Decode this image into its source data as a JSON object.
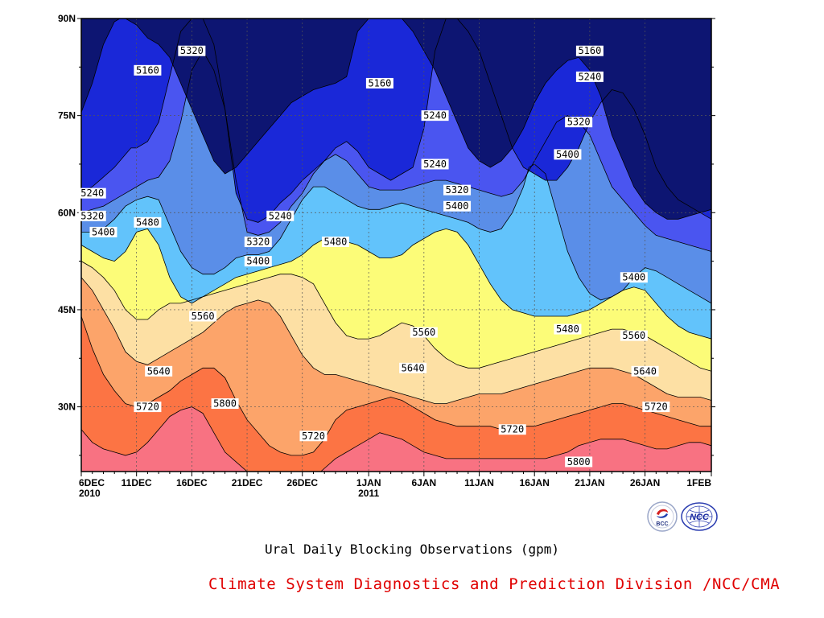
{
  "chart_data": {
    "type": "contour",
    "x_tick_labels": [
      "6DEC",
      "11DEC",
      "16DEC",
      "21DEC",
      "26DEC",
      "1JAN",
      "6JAN",
      "11JAN",
      "16JAN",
      "21JAN",
      "26JAN",
      "1FEB"
    ],
    "x_year_labels": [
      {
        "tick": "6DEC",
        "year": "2010"
      },
      {
        "tick": "1JAN",
        "year": "2011"
      }
    ],
    "y_tick_labels": [
      "30N",
      "45N",
      "60N",
      "75N",
      "90N"
    ],
    "xlim": [
      "6DEC2010",
      "1FEB2011"
    ],
    "ylim": [
      20,
      90
    ],
    "grid": true,
    "contour_levels": [
      5160,
      5240,
      5320,
      5400,
      5480,
      5560,
      5640,
      5720,
      5800
    ],
    "level_colors": [
      "#0d1572",
      "#1a28d8",
      "#4a55f0",
      "#5a8ee8",
      "#62c3fb",
      "#fcfc78",
      "#fde0a4",
      "#fca46a",
      "#fc7444",
      "#f87282"
    ],
    "boundaries": [
      {
        "level": 5160,
        "x": [
          0,
          1,
          2,
          3,
          3.5,
          4,
          5,
          6,
          7,
          8,
          9,
          10,
          11,
          12,
          13,
          14,
          15,
          16,
          17,
          18,
          19,
          20,
          21,
          22,
          23,
          24,
          25,
          26,
          27,
          28,
          29,
          30,
          31,
          32,
          33,
          34,
          35,
          36,
          37,
          38,
          39,
          40,
          41,
          42,
          43,
          44,
          45,
          46,
          47,
          48,
          49,
          50,
          51,
          52,
          53,
          54,
          55,
          56,
          57,
          58,
          59
        ],
        "y": [
          75.5,
          80,
          86,
          89.5,
          90,
          90,
          89,
          87,
          86,
          84,
          80,
          76,
          72,
          68,
          66,
          67,
          69,
          71,
          73,
          75,
          77,
          78,
          79,
          79.5,
          80,
          81,
          88,
          90,
          90,
          90,
          90,
          88,
          85,
          82,
          78,
          74,
          70,
          68,
          67,
          68,
          70,
          73,
          77,
          80,
          82,
          83.5,
          84,
          82,
          78,
          72,
          68,
          64,
          61.5,
          60,
          59,
          59,
          59.5,
          60,
          60.5,
          61,
          61
        ]
      },
      {
        "level": 5240,
        "x": [
          0,
          1,
          2,
          3,
          4,
          4.5,
          5,
          6,
          7,
          8,
          9,
          10,
          11,
          12,
          13,
          14,
          15,
          16,
          17,
          18,
          19,
          20,
          21,
          22,
          23,
          24,
          25,
          26,
          27,
          28,
          29,
          30,
          31,
          32,
          33,
          34,
          35,
          36,
          37,
          38,
          39,
          40,
          41,
          42,
          43,
          44,
          45,
          46,
          47,
          48,
          49,
          50,
          51,
          52,
          53,
          54,
          55,
          56,
          57,
          58,
          59
        ],
        "y": [
          63,
          64,
          65.5,
          67,
          69,
          70,
          70,
          71,
          74,
          81,
          88,
          90,
          90,
          86,
          76,
          63,
          59,
          58.5,
          59.5,
          61.5,
          63,
          65,
          66.5,
          68,
          70,
          71,
          69.5,
          67,
          66,
          65,
          66,
          67,
          73,
          85,
          90,
          90,
          88,
          85,
          80,
          75,
          70,
          67,
          66,
          65,
          65,
          67,
          70,
          74,
          77,
          79,
          78.5,
          76,
          72,
          67,
          64,
          62,
          61,
          60,
          59,
          58,
          57
        ]
      },
      {
        "level": 5320,
        "x": [
          0,
          1,
          2,
          3,
          4,
          5,
          6,
          7,
          8,
          9,
          10,
          11,
          12,
          13,
          14,
          15,
          16,
          17,
          18,
          19,
          20,
          21,
          22,
          23,
          24,
          25,
          26,
          27,
          28,
          29,
          30,
          31,
          32,
          33,
          34,
          35,
          36,
          37,
          38,
          39,
          40,
          41,
          42,
          43,
          44,
          45,
          46,
          47,
          48,
          49,
          50,
          51,
          52,
          53,
          54,
          55,
          56,
          57,
          58,
          59
        ],
        "y": [
          60,
          60.5,
          61,
          62,
          63,
          64,
          65,
          65.5,
          68,
          74,
          82,
          85,
          82,
          76,
          65,
          57,
          56.5,
          57,
          58.5,
          61,
          63,
          66,
          68,
          69,
          68,
          66,
          64,
          63.5,
          63.5,
          63.5,
          64,
          64.5,
          65,
          65,
          64.5,
          64,
          63.5,
          63,
          62.5,
          63,
          65,
          68,
          71,
          74,
          75,
          74,
          72,
          68,
          64,
          62,
          60,
          58,
          56.5,
          56,
          55.5,
          55,
          54.5,
          54,
          53,
          51
        ]
      },
      {
        "level": 5400,
        "x": [
          0,
          1,
          2,
          3,
          4,
          5,
          6,
          7,
          8,
          9,
          10,
          11,
          12,
          13,
          14,
          15,
          16,
          17,
          18,
          19,
          20,
          21,
          22,
          23,
          24,
          25,
          26,
          27,
          28,
          29,
          30,
          31,
          32,
          33,
          34,
          35,
          35.5,
          36,
          37,
          38,
          39,
          40,
          40.5,
          41,
          42,
          43,
          44,
          45,
          46,
          47,
          48,
          49,
          50,
          51,
          52,
          53,
          54,
          55,
          56,
          57,
          58,
          59
        ],
        "y": [
          57,
          57,
          57.5,
          59,
          61,
          62,
          62.5,
          62,
          58,
          54,
          51.5,
          50.5,
          50.5,
          51.5,
          53,
          53.5,
          53.5,
          54,
          56,
          59,
          62,
          64,
          64,
          63,
          62,
          61,
          60.5,
          60.5,
          61,
          61.5,
          61,
          60.5,
          60,
          59.5,
          59,
          58.5,
          58,
          57.5,
          57,
          57.5,
          60,
          64,
          67,
          67.5,
          66,
          60,
          54,
          50,
          47.5,
          46.5,
          47,
          48,
          50,
          51.5,
          51,
          50,
          49,
          48,
          47,
          46,
          45.5,
          45
        ]
      },
      {
        "level": 5480,
        "x": [
          0,
          1,
          2,
          3,
          4,
          5,
          6,
          7,
          8,
          9,
          10,
          11,
          12,
          13,
          14,
          15,
          16,
          17,
          18,
          19,
          20,
          21,
          22,
          23,
          24,
          25,
          26,
          27,
          28,
          29,
          30,
          31,
          32,
          33,
          34,
          35,
          36,
          37,
          38,
          39,
          40,
          41,
          42,
          43,
          44,
          45,
          46,
          47,
          48,
          49,
          50,
          51,
          52,
          53,
          54,
          55,
          56,
          57,
          58,
          59
        ],
        "y": [
          55,
          54,
          53,
          52.5,
          54,
          57,
          57.5,
          55,
          50,
          47,
          46,
          47,
          48,
          49,
          50,
          50.5,
          51,
          51.5,
          52,
          52.5,
          53.5,
          55,
          56,
          56,
          55.5,
          55,
          54,
          53,
          53,
          53.5,
          55,
          56,
          57,
          57.5,
          57,
          55,
          52,
          49,
          46.5,
          45,
          44.5,
          44,
          44,
          44,
          44,
          44.5,
          45,
          46,
          47,
          48,
          48.5,
          48,
          46,
          44,
          42.5,
          41.5,
          41,
          40.5,
          40,
          39
        ]
      },
      {
        "level": 5560,
        "x": [
          0,
          1,
          2,
          3,
          4,
          5,
          6,
          7,
          8,
          9,
          10,
          11,
          12,
          13,
          14,
          15,
          16,
          17,
          18,
          19,
          20,
          21,
          22,
          23,
          24,
          25,
          26,
          27,
          28,
          29,
          30,
          31,
          32,
          33,
          34,
          35,
          36,
          37,
          38,
          39,
          40,
          41,
          42,
          43,
          44,
          45,
          46,
          47,
          48,
          49,
          50,
          51,
          52,
          53,
          54,
          55,
          56,
          57,
          58,
          59
        ],
        "y": [
          52.5,
          51.5,
          50,
          48,
          45,
          43.5,
          43.5,
          45,
          46,
          46,
          46.5,
          47,
          47.5,
          48,
          48.5,
          49,
          49.5,
          50,
          50.5,
          50.5,
          50,
          49,
          46,
          43,
          41,
          40.5,
          40.5,
          41,
          42,
          43,
          42.5,
          41,
          39,
          37.5,
          36.5,
          36,
          36,
          36.5,
          37,
          37.5,
          38,
          38.5,
          39,
          39.5,
          40,
          40.5,
          41,
          41.5,
          42,
          42,
          41.5,
          41,
          40,
          39,
          38,
          37,
          36,
          35.5,
          35,
          34.5
        ]
      },
      {
        "level": 5640,
        "x": [
          0,
          1,
          2,
          3,
          4,
          5,
          6,
          7,
          8,
          9,
          10,
          11,
          12,
          13,
          14,
          15,
          16,
          17,
          18,
          19,
          20,
          21,
          22,
          23,
          24,
          25,
          26,
          27,
          28,
          29,
          30,
          31,
          32,
          33,
          34,
          35,
          36,
          37,
          38,
          39,
          40,
          41,
          42,
          43,
          44,
          45,
          46,
          47,
          48,
          49,
          50,
          51,
          52,
          53,
          54,
          55,
          56,
          57,
          58,
          59
        ],
        "y": [
          50,
          48,
          45,
          42,
          38.5,
          37,
          36.5,
          37.5,
          38.5,
          39.5,
          40.5,
          41.5,
          43,
          44.5,
          45.5,
          46,
          46.5,
          46,
          44,
          41,
          38,
          36,
          35,
          35,
          34.5,
          34,
          33.5,
          33,
          32.5,
          32,
          31.5,
          31,
          30.5,
          30.5,
          31,
          31.5,
          32,
          32,
          32,
          32.5,
          33,
          33.5,
          34,
          34.5,
          35,
          35.5,
          36,
          36,
          36,
          35.5,
          35,
          34,
          33,
          32,
          31.5,
          31.5,
          31.5,
          31,
          31,
          31
        ]
      },
      {
        "level": 5720,
        "x": [
          0,
          1,
          2,
          3,
          4,
          5,
          6,
          7,
          8,
          9,
          10,
          11,
          12,
          13,
          14,
          15,
          16,
          17,
          18,
          19,
          20,
          21,
          22,
          23,
          24,
          25,
          26,
          27,
          28,
          29,
          30,
          31,
          32,
          33,
          34,
          35,
          36,
          37,
          38,
          39,
          40,
          41,
          42,
          43,
          44,
          45,
          46,
          47,
          48,
          49,
          50,
          51,
          52,
          53,
          54,
          55,
          56,
          57,
          58,
          59
        ],
        "y": [
          44,
          39,
          35,
          32.5,
          30.5,
          30,
          30.5,
          31.5,
          32.5,
          34,
          35,
          36,
          36,
          34.5,
          31,
          28,
          26,
          24,
          23,
          22.5,
          22.5,
          23,
          25,
          28,
          29.5,
          30,
          30.5,
          31,
          31.5,
          31,
          30,
          29,
          28,
          27.5,
          27,
          27,
          27,
          27,
          26.5,
          26.5,
          27,
          27,
          27.5,
          28,
          28.5,
          29,
          29.5,
          30,
          30.5,
          30.5,
          30,
          29.5,
          29,
          28.5,
          28,
          27.5,
          27,
          27,
          28,
          28
        ]
      },
      {
        "level": 5800,
        "x": [
          0,
          1,
          2,
          3,
          4,
          5,
          6,
          7,
          8,
          9,
          10,
          11,
          12,
          13,
          14,
          15,
          16,
          17,
          18,
          19,
          20,
          21,
          22,
          23,
          24,
          25,
          26,
          27,
          28,
          29,
          30,
          31,
          32,
          33,
          34,
          35,
          36,
          37,
          38,
          39,
          40,
          41,
          42,
          43,
          44,
          45,
          46,
          47,
          48,
          49,
          50,
          51,
          52,
          53,
          54,
          55,
          56,
          57,
          58,
          59
        ],
        "y": [
          26.5,
          24.5,
          23.5,
          23,
          22.5,
          23,
          24.5,
          26.5,
          28.5,
          29.5,
          30,
          29,
          26,
          23,
          21.5,
          20,
          19,
          19,
          18.5,
          18,
          18,
          19,
          20.5,
          22,
          23,
          24,
          25,
          26,
          25.5,
          25,
          24,
          23,
          22.5,
          22,
          22,
          22,
          22,
          22,
          22,
          22,
          22,
          22,
          22,
          22.5,
          23,
          24,
          24.5,
          25,
          25,
          25,
          24.5,
          24,
          23.5,
          23.5,
          24,
          24.5,
          24.5,
          24,
          24,
          24
        ]
      }
    ],
    "contour_labels": [
      {
        "text": "5160",
        "x": 6,
        "y": 82
      },
      {
        "text": "5160",
        "x": 27,
        "y": 80
      },
      {
        "text": "5160",
        "x": 46,
        "y": 85
      },
      {
        "text": "5240",
        "x": 1,
        "y": 63
      },
      {
        "text": "5240",
        "x": 18,
        "y": 59.5
      },
      {
        "text": "5240",
        "x": 32,
        "y": 75
      },
      {
        "text": "5240",
        "x": 32,
        "y": 67.5
      },
      {
        "text": "5240",
        "x": 46,
        "y": 81
      },
      {
        "text": "5320",
        "x": 1,
        "y": 59.5
      },
      {
        "text": "5320",
        "x": 10,
        "y": 85
      },
      {
        "text": "5320",
        "x": 16,
        "y": 55.5
      },
      {
        "text": "5320",
        "x": 34,
        "y": 63.5
      },
      {
        "text": "5320",
        "x": 45,
        "y": 74
      },
      {
        "text": "5400",
        "x": 2,
        "y": 57
      },
      {
        "text": "5400",
        "x": 16,
        "y": 52.5
      },
      {
        "text": "5400",
        "x": 34,
        "y": 61
      },
      {
        "text": "5400",
        "x": 44,
        "y": 69
      },
      {
        "text": "5400",
        "x": 50,
        "y": 50
      },
      {
        "text": "5480",
        "x": 6,
        "y": 58.5
      },
      {
        "text": "5480",
        "x": 23,
        "y": 55.5
      },
      {
        "text": "5480",
        "x": 44,
        "y": 42
      },
      {
        "text": "5560",
        "x": 11,
        "y": 44
      },
      {
        "text": "5560",
        "x": 31,
        "y": 41.5
      },
      {
        "text": "5560",
        "x": 50,
        "y": 41
      },
      {
        "text": "5640",
        "x": 7,
        "y": 35.5
      },
      {
        "text": "5640",
        "x": 30,
        "y": 36
      },
      {
        "text": "5640",
        "x": 51,
        "y": 35.5
      },
      {
        "text": "5720",
        "x": 6,
        "y": 30
      },
      {
        "text": "5720",
        "x": 21,
        "y": 25.5
      },
      {
        "text": "5720",
        "x": 39,
        "y": 26.5
      },
      {
        "text": "5720",
        "x": 52,
        "y": 30
      },
      {
        "text": "5800",
        "x": 13,
        "y": 30.5
      },
      {
        "text": "5800",
        "x": 45,
        "y": 21.5
      }
    ]
  },
  "caption": "Ural Daily Blocking Observations (gpm)",
  "credit": "Climate System Diagnostics and Prediction Division /NCC/CMA",
  "logos": {
    "bcc_text": "BCC",
    "ncc_text": "NCC"
  }
}
